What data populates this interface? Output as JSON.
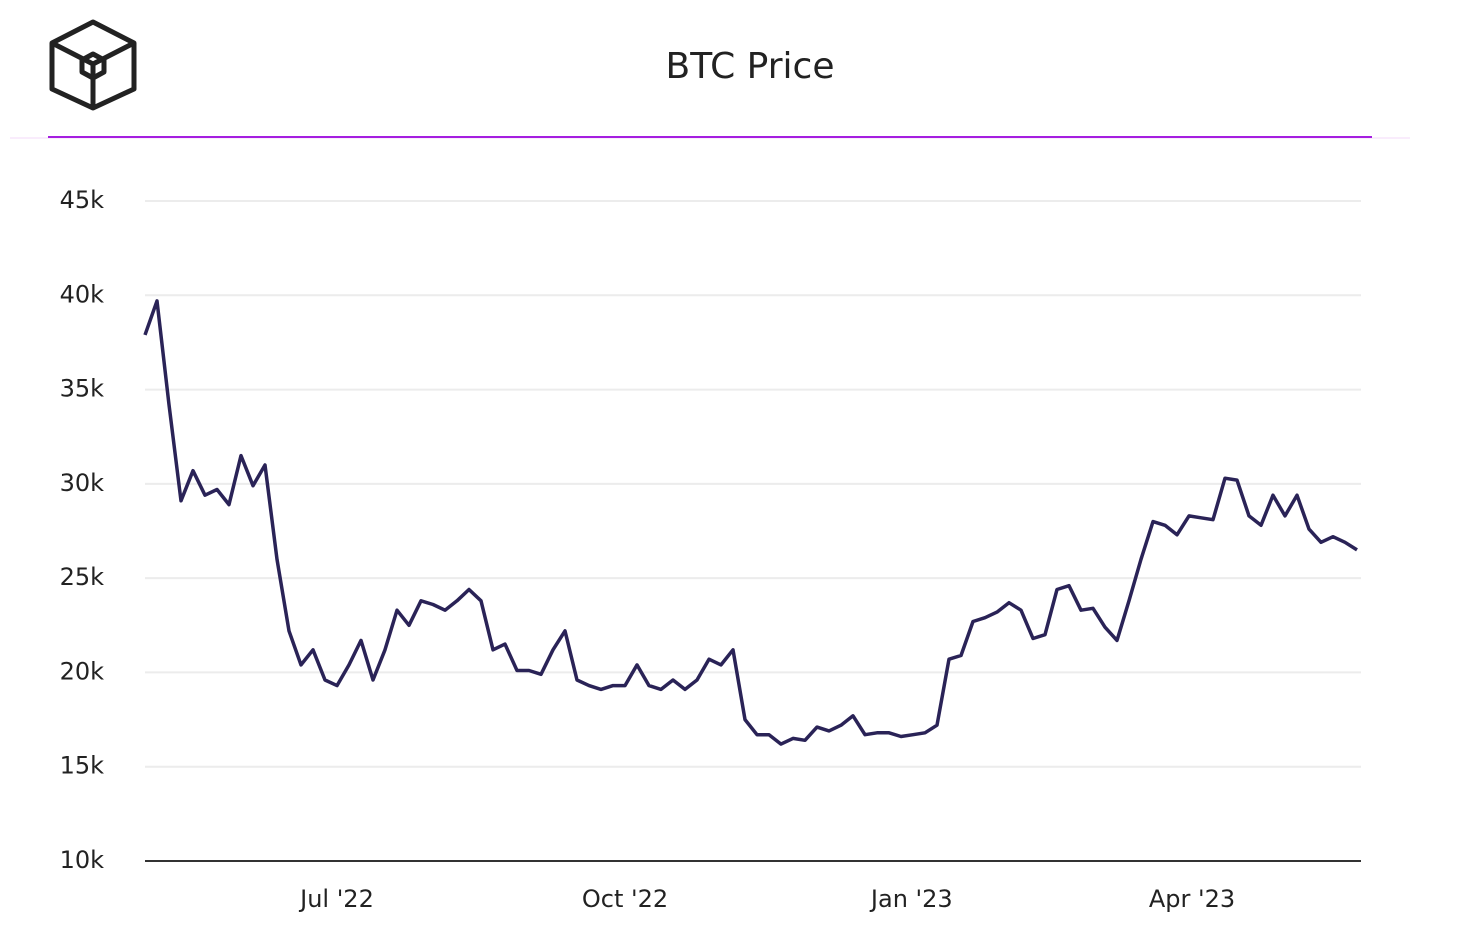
{
  "chart_data": {
    "type": "line",
    "title": "BTC Price",
    "series": [
      {
        "color": "#2a2357",
        "values": [
          37900,
          39700,
          34200,
          29100,
          30700,
          29400,
          29700,
          28900,
          31500,
          29900,
          31000,
          26000,
          22200,
          20400,
          21200,
          19600,
          19300,
          20400,
          21700,
          19600,
          21200,
          23300,
          22500,
          23800,
          23600,
          23300,
          23800,
          24400,
          23800,
          21200,
          21500,
          20100,
          20100,
          19900,
          21200,
          22200,
          19600,
          19300,
          19100,
          19300,
          19300,
          20400,
          19300,
          19100,
          19600,
          19100,
          19600,
          20700,
          20400,
          21200,
          17500,
          16700,
          16700,
          16200,
          16500,
          16400,
          17100,
          16900,
          17200,
          17700,
          16700,
          16800,
          16800,
          16600,
          16700,
          16800,
          17200,
          20700,
          20900,
          22700,
          22900,
          23200,
          23700,
          23300,
          21800,
          22000,
          24400,
          24600,
          23300,
          23400,
          22400,
          21700,
          23800,
          26000,
          28000,
          27800,
          27300,
          28300,
          28200,
          28100,
          30300,
          30200,
          28300,
          27800,
          29400,
          28300,
          29400,
          27600,
          26900,
          27200,
          26900,
          26500
        ]
      }
    ],
    "xlim": [
      0,
      101
    ],
    "xticks": [
      {
        "value": 16,
        "label": "Jul '22"
      },
      {
        "value": 40,
        "label": "Oct '22"
      },
      {
        "value": 63.9,
        "label": "Jan '23"
      },
      {
        "value": 87.25,
        "label": "Apr '23"
      }
    ],
    "ylim": [
      10000,
      45000
    ],
    "yticks": [
      {
        "value": 10000,
        "label": "10k"
      },
      {
        "value": 15000,
        "label": "15k"
      },
      {
        "value": 20000,
        "label": "20k"
      },
      {
        "value": 25000,
        "label": "25k"
      },
      {
        "value": 30000,
        "label": "30k"
      },
      {
        "value": 35000,
        "label": "35k"
      },
      {
        "value": 40000,
        "label": "40k"
      },
      {
        "value": 45000,
        "label": "45k"
      }
    ],
    "grid": true
  }
}
